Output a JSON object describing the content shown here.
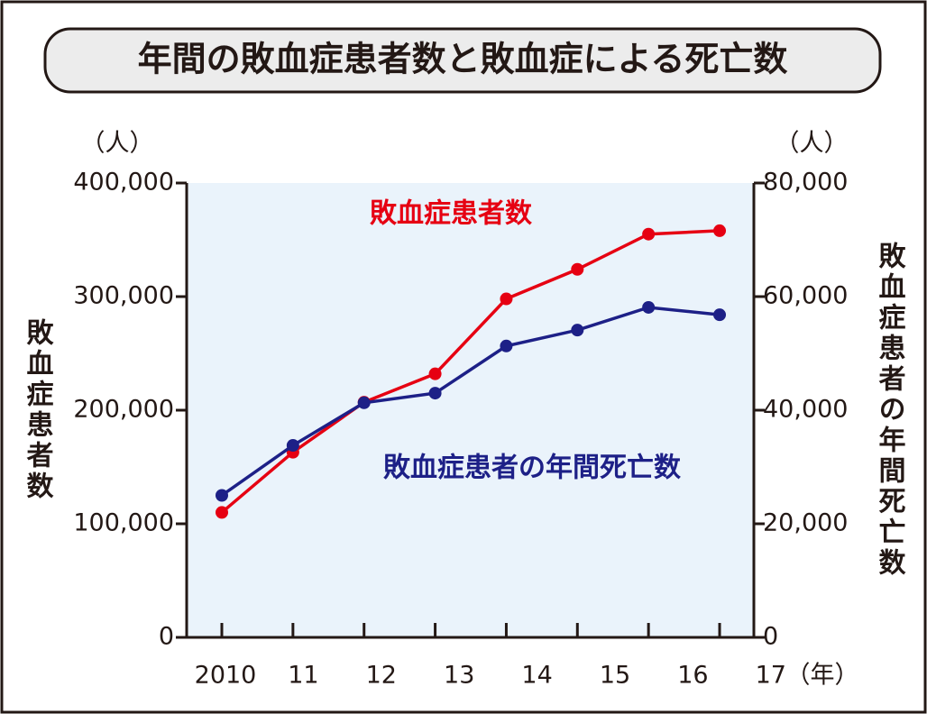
{
  "chart_data": {
    "type": "line",
    "title": "年間の敗血症患者数と敗血症による死亡数",
    "y_unit": "（人）",
    "y2_unit": "（人）",
    "x_unit": "（年）",
    "ylabel": "敗血症患者数",
    "y2label": "敗血症患者の年間死亡数",
    "categories": [
      "2010",
      "11",
      "12",
      "13",
      "14",
      "15",
      "16",
      "17"
    ],
    "series": [
      {
        "name": "敗血症患者数",
        "color": "#e60012",
        "values": [
          110000,
          163000,
          207000,
          232000,
          298000,
          324000,
          355000,
          358000
        ]
      },
      {
        "name": "敗血症患者の年間死亡数",
        "color": "#1d2087",
        "axis": "y2",
        "values": [
          25000,
          33800,
          41300,
          43000,
          51300,
          54100,
          58100,
          56800
        ]
      }
    ],
    "ylim": [
      0,
      400000
    ],
    "yticks": [
      0,
      {
        "value": 100000,
        "label": "100,000"
      },
      {
        "value": 200000,
        "label": "200,000"
      },
      {
        "value": 300000,
        "label": "300,000"
      },
      {
        "value": 400000,
        "label": "400,000"
      }
    ],
    "y2lim": [
      0,
      80000
    ],
    "y2ticks": [
      0,
      {
        "value": 20000,
        "label": "20,000"
      },
      {
        "value": 40000,
        "label": "40,000"
      },
      {
        "value": 60000,
        "label": "60,000"
      },
      {
        "value": 80000,
        "label": "80,000"
      }
    ]
  }
}
